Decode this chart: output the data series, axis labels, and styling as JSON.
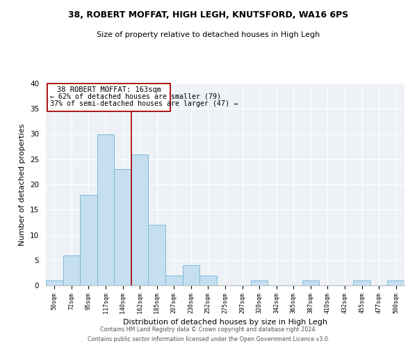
{
  "title": "38, ROBERT MOFFAT, HIGH LEGH, KNUTSFORD, WA16 6PS",
  "subtitle": "Size of property relative to detached houses in High Legh",
  "xlabel": "Distribution of detached houses by size in High Legh",
  "ylabel": "Number of detached properties",
  "bar_color": "#c5dff0",
  "bar_edge_color": "#7db8d8",
  "annotation_line_color": "#aa0000",
  "tick_labels": [
    "50sqm",
    "72sqm",
    "95sqm",
    "117sqm",
    "140sqm",
    "162sqm",
    "185sqm",
    "207sqm",
    "230sqm",
    "252sqm",
    "275sqm",
    "297sqm",
    "320sqm",
    "342sqm",
    "365sqm",
    "387sqm",
    "410sqm",
    "432sqm",
    "455sqm",
    "477sqm",
    "500sqm"
  ],
  "bar_values": [
    1,
    6,
    18,
    30,
    23,
    26,
    12,
    2,
    4,
    2,
    0,
    0,
    1,
    0,
    0,
    1,
    0,
    0,
    1,
    0,
    1
  ],
  "annotation_line1": "38 ROBERT MOFFAT: 163sqm",
  "annotation_line2": "← 62% of detached houses are smaller (79)",
  "annotation_line3": "37% of semi-detached houses are larger (47) →",
  "ylim": [
    0,
    40
  ],
  "yticks": [
    0,
    5,
    10,
    15,
    20,
    25,
    30,
    35,
    40
  ],
  "background_color": "#eef2f7",
  "grid_color": "#ffffff",
  "footer_line1": "Contains HM Land Registry data © Crown copyright and database right 2024.",
  "footer_line2": "Contains public sector information licensed under the Open Government Licence v3.0."
}
